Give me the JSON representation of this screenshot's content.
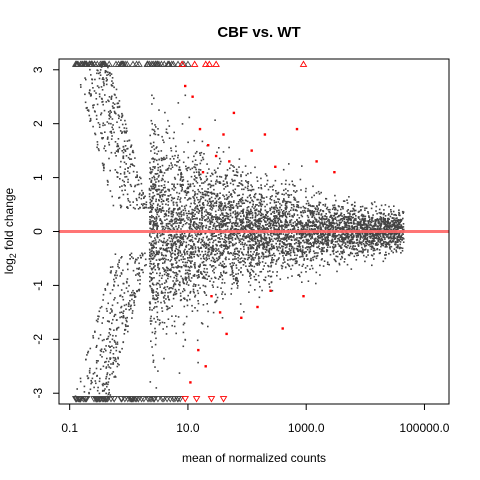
{
  "chart_data": {
    "type": "scatter",
    "title": "CBF vs. WT",
    "xlabel": "mean of normalized counts",
    "ylabel_main": "log",
    "ylabel_sub": "2",
    "ylabel_tail": " fold change",
    "x_scale": "log10",
    "xlim": [
      0.066,
      260000
    ],
    "ylim": [
      -3.2,
      3.2
    ],
    "x_ticks": [
      {
        "value": 0.1,
        "label": "0.1"
      },
      {
        "value": 10,
        "label": "10.0"
      },
      {
        "value": 1000,
        "label": "1000.0"
      },
      {
        "value": 100000,
        "label": "100000.0"
      }
    ],
    "y_ticks": [
      {
        "value": -3,
        "label": "-3"
      },
      {
        "value": -2,
        "label": "-2"
      },
      {
        "value": -1,
        "label": "-1"
      },
      {
        "value": 0,
        "label": "0"
      },
      {
        "value": 1,
        "label": "1"
      },
      {
        "value": 2,
        "label": "2"
      },
      {
        "value": 3,
        "label": "3"
      }
    ],
    "reference_line": {
      "y": 0,
      "color": "#ff6666"
    },
    "clip_value": 3.1,
    "colors": {
      "not_significant": "#444444",
      "significant": "#ff0000",
      "reference_line": "#ff6666"
    },
    "legend": "none",
    "grid": false,
    "series": [
      {
        "color": "#ff0000",
        "values": [
          [
            9,
            2.7
          ],
          [
            12,
            2.5
          ],
          [
            16,
            1.9
          ],
          [
            22,
            1.6
          ],
          [
            30,
            1.4
          ],
          [
            50,
            1.3
          ],
          [
            120,
            1.5
          ],
          [
            200,
            1.8
          ],
          [
            300,
            1.2
          ],
          [
            700,
            1.9
          ],
          [
            1500,
            1.3
          ],
          [
            3000,
            1.1
          ],
          [
            60,
            2.2
          ],
          [
            40,
            1.8
          ],
          [
            25,
            -1.2
          ],
          [
            35,
            -1.5
          ],
          [
            15,
            -2.2
          ],
          [
            20,
            -2.5
          ],
          [
            45,
            -1.9
          ],
          [
            80,
            -1.6
          ],
          [
            150,
            -1.4
          ],
          [
            400,
            -1.8
          ],
          [
            900,
            -1.2
          ],
          [
            11,
            -2.8
          ],
          [
            250,
            -1.1
          ],
          [
            18,
            1.1
          ]
        ]
      },
      {
        "color": "#ff0000",
        "values": [
          [
            8,
            3.1
          ],
          [
            13,
            3.1
          ],
          [
            20,
            3.1
          ],
          [
            23,
            3.1
          ],
          [
            30,
            3.1
          ],
          [
            900,
            3.1
          ],
          [
            9,
            -3.1
          ],
          [
            14,
            -3.1
          ],
          [
            25,
            -3.1
          ],
          [
            40,
            -3.1
          ]
        ]
      }
    ]
  }
}
